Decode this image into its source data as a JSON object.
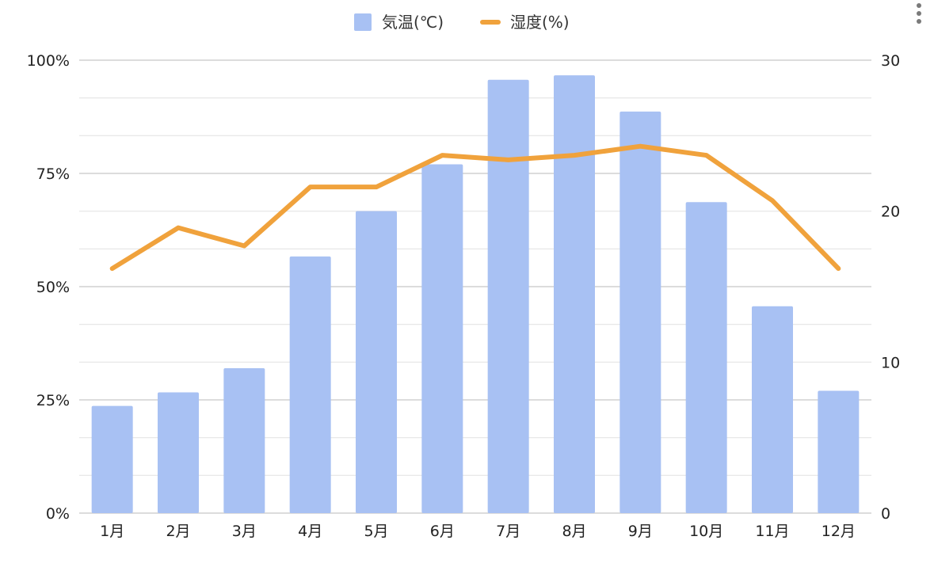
{
  "chart_data": {
    "type": "bar",
    "categories": [
      "1月",
      "2月",
      "3月",
      "4月",
      "5月",
      "6月",
      "7月",
      "8月",
      "9月",
      "10月",
      "11月",
      "12月"
    ],
    "series": [
      {
        "name": "気温(℃)",
        "type": "bar",
        "axis": "right",
        "values": [
          7.1,
          8.0,
          9.6,
          17.0,
          20.0,
          23.1,
          28.7,
          29.0,
          26.6,
          20.6,
          13.7,
          8.1
        ]
      },
      {
        "name": "湿度(%)",
        "type": "line",
        "axis": "left",
        "values": [
          54,
          63,
          59,
          72,
          72,
          79,
          78,
          79,
          81,
          79,
          69,
          54
        ]
      }
    ],
    "left_axis": {
      "ticks": [
        "0%",
        "25%",
        "50%",
        "75%",
        "100%"
      ],
      "range": [
        0,
        100
      ]
    },
    "right_axis": {
      "ticks": [
        "0",
        "10",
        "20",
        "30"
      ],
      "range": [
        0,
        30
      ]
    },
    "colors": {
      "bar": "#a8c1f3",
      "line": "#f0a23c"
    },
    "legend": "top-center",
    "grid": true
  }
}
